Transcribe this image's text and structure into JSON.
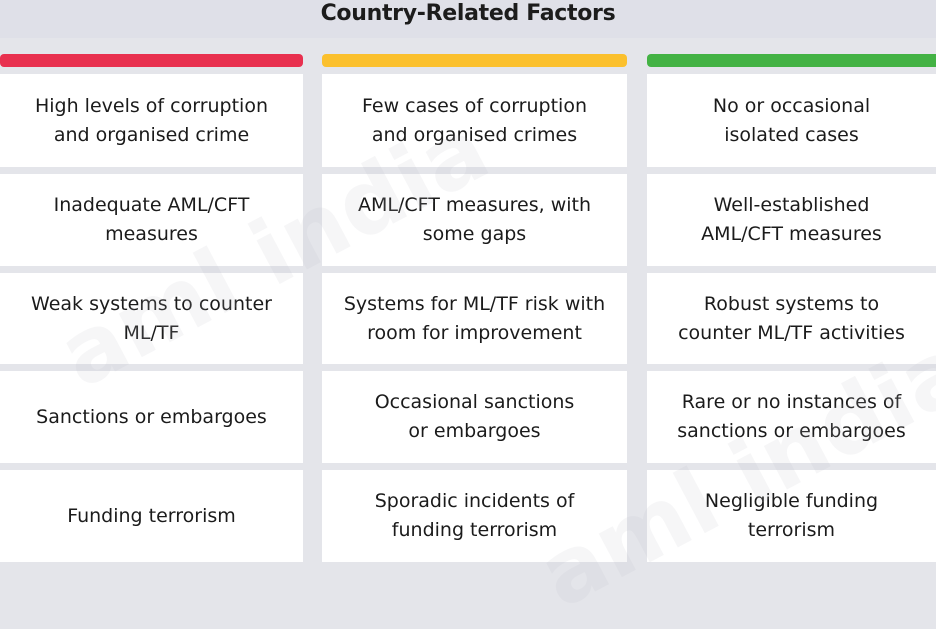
{
  "header": {
    "title": "Country-Related Factors"
  },
  "columns": [
    {
      "level": "high-risk",
      "bar_color": "#e8304f",
      "cells": [
        "High levels of corruption\nand organised crime",
        "Inadequate AML/CFT\nmeasures",
        "Weak systems to counter\nML/TF",
        "Sanctions or embargoes",
        "Funding terrorism"
      ]
    },
    {
      "level": "medium-risk",
      "bar_color": "#fbc02d",
      "cells": [
        "Few cases of corruption\nand organised crimes",
        "AML/CFT measures, with\nsome gaps",
        "Systems for ML/TF risk with\nroom for improvement",
        "Occasional sanctions\nor embargoes",
        "Sporadic incidents of\nfunding terrorism"
      ]
    },
    {
      "level": "low-risk",
      "bar_color": "#43b244",
      "cells": [
        "No or occasional\nisolated cases",
        "Well-established\nAML/CFT measures",
        "Robust systems to\ncounter ML/TF activities",
        "Rare or no instances of\nsanctions or embargoes",
        "Negligible funding\nterrorism"
      ]
    }
  ],
  "watermark": {
    "text": "aml india"
  }
}
